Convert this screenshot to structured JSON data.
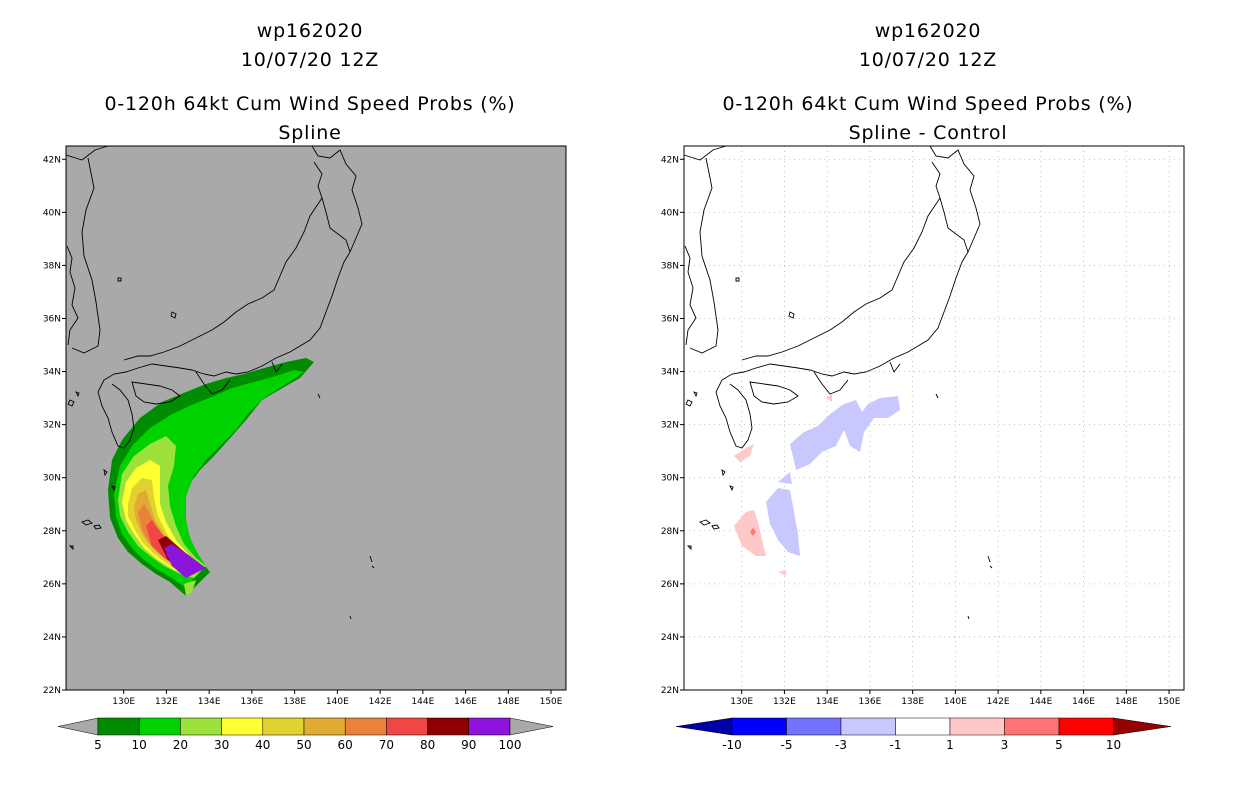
{
  "left": {
    "title_line1": "wp162020",
    "title_line2": "10/07/20 12Z",
    "title_line3": "0-120h 64kt Cum Wind Speed Probs (%)",
    "title_line4": "Spline",
    "background_color": "#a9a9a9",
    "colorbar": {
      "colors": [
        "#008c00",
        "#00d200",
        "#9ce13c",
        "#ffff32",
        "#e1d232",
        "#e1aa32",
        "#eb823c",
        "#f04646",
        "#910000",
        "#8c14dc"
      ],
      "labels": [
        "5",
        "10",
        "20",
        "30",
        "40",
        "50",
        "60",
        "70",
        "80",
        "90",
        "100"
      ]
    }
  },
  "right": {
    "title_line1": "wp162020",
    "title_line2": "10/07/20 12Z",
    "title_line3": "0-120h 64kt Cum Wind Speed Probs (%)",
    "title_line4": "Spline - Control",
    "background_color": "#ffffff",
    "colorbar": {
      "colors": [
        "#0000aa",
        "#0000ff",
        "#7373ff",
        "#c8c8ff",
        "#ffffff",
        "#ffc8c8",
        "#ff7373",
        "#ff0000",
        "#960000"
      ],
      "labels": [
        "-10",
        "-5",
        "-3",
        "-1",
        "1",
        "3",
        "5",
        "10"
      ]
    }
  },
  "axes": {
    "lat_labels": [
      "22N",
      "24N",
      "26N",
      "28N",
      "30N",
      "32N",
      "34N",
      "36N",
      "38N",
      "40N",
      "42N"
    ],
    "lon_labels": [
      "130E",
      "132E",
      "134E",
      "136E",
      "138E",
      "140E",
      "142E",
      "144E",
      "146E",
      "148E",
      "150E"
    ],
    "lat_range": [
      22,
      42.5
    ],
    "lon_range": [
      127.3,
      150.7
    ]
  }
}
